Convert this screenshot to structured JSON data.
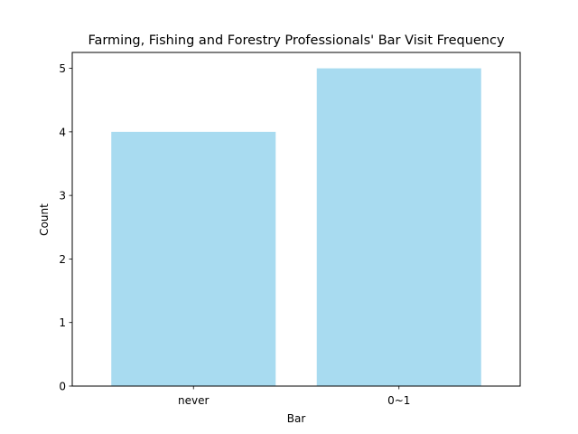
{
  "chart_data": {
    "type": "bar",
    "title": "Farming, Fishing and Forestry Professionals' Bar Visit Frequency",
    "xlabel": "Bar",
    "ylabel": "Count",
    "categories": [
      "never",
      "0~1"
    ],
    "values": [
      4,
      5
    ],
    "ylim": [
      0,
      5.25
    ],
    "yticks": [
      "0",
      "1",
      "2",
      "3",
      "4",
      "5"
    ],
    "bar_color": "#a8dbf0",
    "grid": false,
    "legend": "none"
  }
}
